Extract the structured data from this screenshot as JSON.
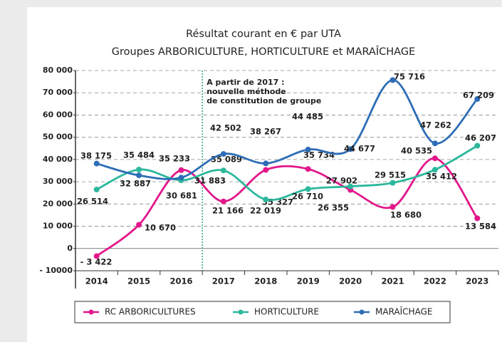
{
  "chart_data": {
    "type": "line",
    "title": [
      "Résultat courant en € par UTA",
      "Groupes ARBORICULTURE, HORTICULTURE et MARAÎCHAGE"
    ],
    "categories": [
      "2014",
      "2015",
      "2016",
      "2017",
      "2018",
      "2019",
      "2020",
      "2021",
      "2022",
      "2023"
    ],
    "series": [
      {
        "name": "RC ARBORICULTURES",
        "color": "#e2178a",
        "values": [
          -3422,
          10670,
          35233,
          21166,
          35327,
          35734,
          26355,
          18680,
          40535,
          13584
        ],
        "value_labels": [
          "- 3 422",
          "10 670",
          "35 233",
          "21 166",
          "35 327",
          "35 734",
          "26 355",
          "18 680",
          "40 535",
          "13 584"
        ]
      },
      {
        "name": "HORTICULTURE",
        "color": "#2cb89c",
        "values": [
          26514,
          35484,
          30681,
          35089,
          22019,
          26710,
          27902,
          29515,
          35412,
          46207
        ],
        "value_labels": [
          "26 514",
          "35 484",
          "30 681",
          "35 089",
          "22 019",
          "26 710",
          "27 902",
          "29 515",
          "35 412",
          "46 207"
        ]
      },
      {
        "name": "MARAÎCHAGE",
        "color": "#2d6db5",
        "values": [
          38175,
          32887,
          31883,
          42502,
          38267,
          44485,
          44677,
          75716,
          47262,
          67209
        ],
        "value_labels": [
          "38 175",
          "32 887",
          "31 883",
          "42 502",
          "38 267",
          "44 485",
          "44 677",
          "75 716",
          "47 262",
          "67 209"
        ]
      }
    ],
    "ylim": [
      -10000,
      80000
    ],
    "yticks": [
      {
        "value": -10000,
        "label": "- 10000"
      },
      0,
      {
        "value": 10000,
        "label": "10 000"
      },
      {
        "value": 20000,
        "label": "20 000"
      },
      {
        "value": 30000,
        "label": "30 000"
      },
      {
        "value": 40000,
        "label": "40 000"
      },
      {
        "value": 50000,
        "label": "50 000"
      },
      {
        "value": 60000,
        "label": "60 000"
      },
      {
        "value": 70000,
        "label": "70 000"
      },
      {
        "value": 80000,
        "label": "80 000"
      }
    ],
    "grid": true,
    "annotation": [
      "A partir de 2017 :",
      "nouvelle méthode",
      "de constitution de groupe"
    ],
    "annotation_color": "#2aa86a",
    "legend": "bottom"
  }
}
